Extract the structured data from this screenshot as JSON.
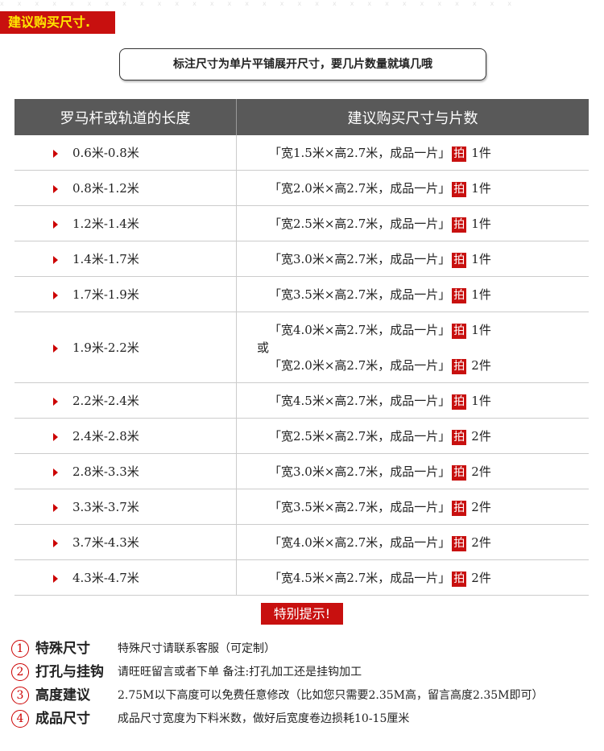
{
  "title": "建议购买尺寸.",
  "note": "标注尺寸为单片平铺展开尺寸，要几片数量就填几哦",
  "table": {
    "headers": [
      "罗马杆或轨道的长度",
      "建议购买尺寸与片数"
    ],
    "pai_label": "拍",
    "or_label": "或",
    "rows": [
      {
        "length": "0.6米-0.8米",
        "options": [
          {
            "size": "「宽1.5米×高2.7米，成品一片」",
            "qty": "1件"
          }
        ]
      },
      {
        "length": "0.8米-1.2米",
        "options": [
          {
            "size": "「宽2.0米×高2.7米，成品一片」",
            "qty": "1件"
          }
        ]
      },
      {
        "length": "1.2米-1.4米",
        "options": [
          {
            "size": "「宽2.5米×高2.7米，成品一片」",
            "qty": "1件"
          }
        ]
      },
      {
        "length": "1.4米-1.7米",
        "options": [
          {
            "size": "「宽3.0米×高2.7米，成品一片」",
            "qty": "1件"
          }
        ]
      },
      {
        "length": "1.7米-1.9米",
        "options": [
          {
            "size": "「宽3.5米×高2.7米，成品一片」",
            "qty": "1件"
          }
        ]
      },
      {
        "length": "1.9米-2.2米",
        "options": [
          {
            "size": "「宽4.0米×高2.7米，成品一片」",
            "qty": "1件"
          },
          {
            "size": "「宽2.0米×高2.7米，成品一片」",
            "qty": "2件"
          }
        ]
      },
      {
        "length": "2.2米-2.4米",
        "options": [
          {
            "size": "「宽4.5米×高2.7米，成品一片」",
            "qty": "1件"
          }
        ]
      },
      {
        "length": "2.4米-2.8米",
        "options": [
          {
            "size": "「宽2.5米×高2.7米，成品一片」",
            "qty": "2件"
          }
        ]
      },
      {
        "length": "2.8米-3.3米",
        "options": [
          {
            "size": "「宽3.0米×高2.7米，成品一片」",
            "qty": "2件"
          }
        ]
      },
      {
        "length": "3.3米-3.7米",
        "options": [
          {
            "size": "「宽3.5米×高2.7米，成品一片」",
            "qty": "2件"
          }
        ]
      },
      {
        "length": "3.7米-4.3米",
        "options": [
          {
            "size": "「宽4.0米×高2.7米，成品一片」",
            "qty": "2件"
          }
        ]
      },
      {
        "length": "4.3米-4.7米",
        "options": [
          {
            "size": "「宽4.5米×高2.7米，成品一片」",
            "qty": "2件"
          }
        ]
      }
    ]
  },
  "tips": {
    "title": "特别提示!",
    "items": [
      {
        "num": "1",
        "label": "特殊尺寸",
        "text": "特殊尺寸请联系客服（可定制）"
      },
      {
        "num": "2",
        "label": "打孔与挂钩",
        "text": "请旺旺留言或者下单 备注:打孔加工还是挂钩加工"
      },
      {
        "num": "3",
        "label": "高度建议",
        "text": "2.75M以下高度可以免费任意修改（比如您只需要2.35M高，留言高度2.35M即可）"
      },
      {
        "num": "4",
        "label": "成品尺寸",
        "text": "成品尺寸宽度为下料米数，做好后宽度卷边损耗10-15厘米"
      }
    ]
  },
  "colors": {
    "accent_red": "#c8100f",
    "title_text": "#ffe800",
    "header_bg": "#595959"
  }
}
